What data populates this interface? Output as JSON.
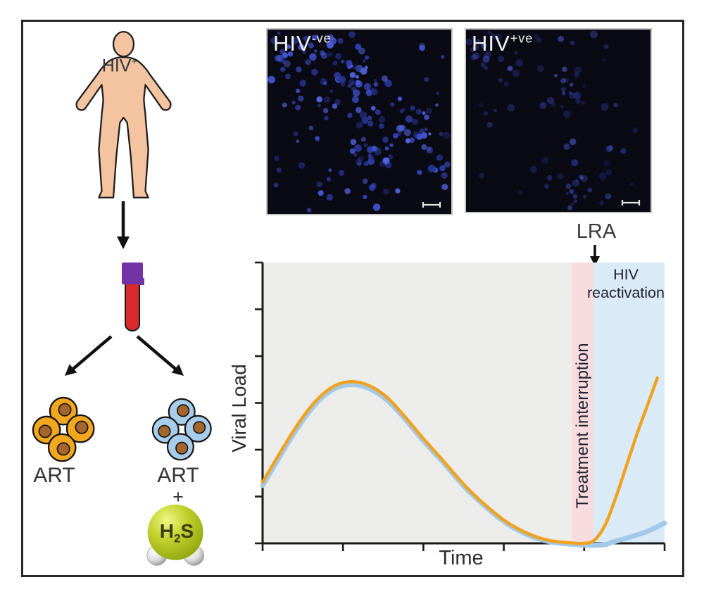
{
  "colors": {
    "skin": "#F4C4A0",
    "outline": "#1d1d1d",
    "tube_cap": "#7233A6",
    "tube_body": "#D8292B",
    "art_cell": "#F3A71D",
    "h2s_cell": "#A8CDEB",
    "nucleus": "#A4662B",
    "micrograph_bg": "#0a0a15",
    "text": "#2e2e2e"
  },
  "patient": {
    "label_base": "HIV",
    "label_sup": "+"
  },
  "micrographs": [
    {
      "label_base": "HIV",
      "label_sup": "-ve",
      "dot_count": 215,
      "dot_opacity": 1.0,
      "seed": 7
    },
    {
      "label_base": "HIV",
      "label_sup": "+ve",
      "dot_count": 115,
      "dot_opacity": 0.55,
      "seed": 13
    }
  ],
  "samples": {
    "art": {
      "label": "ART"
    },
    "art_h2s": {
      "label": "ART",
      "plus": "+",
      "molecule": {
        "h": "H",
        "sub": "2",
        "s": "S"
      }
    }
  },
  "chart_data": {
    "type": "line",
    "title": "",
    "xlabel": "Time",
    "ylabel": "Viral Load",
    "x_range": [
      0,
      1
    ],
    "y_range": [
      0,
      1
    ],
    "x_tick_count": 6,
    "y_tick_count": 7,
    "grid": false,
    "legend": "none",
    "regions": [
      {
        "name": "on-treatment",
        "from": 0,
        "to": 0.769,
        "color": "#ECECEA",
        "label": ""
      },
      {
        "name": "treatment-interruption",
        "from": 0.769,
        "to": 0.823,
        "color": "#F8DBDE",
        "label": "Treatment interruption"
      },
      {
        "name": "hiv-reactivation",
        "from": 0.823,
        "to": 1,
        "color": "#DAEAF6",
        "label": "HIV reactivation"
      }
    ],
    "annotations": [
      {
        "text": "LRA",
        "x": 0.823
      }
    ],
    "series": [
      {
        "name": "ART",
        "color": "#F0A21E",
        "width": 4.5,
        "points": [
          [
            0,
            0.218
          ],
          [
            0.047,
            0.331
          ],
          [
            0.091,
            0.431
          ],
          [
            0.135,
            0.511
          ],
          [
            0.179,
            0.561
          ],
          [
            0.222,
            0.576
          ],
          [
            0.266,
            0.561
          ],
          [
            0.31,
            0.519
          ],
          [
            0.354,
            0.451
          ],
          [
            0.398,
            0.376
          ],
          [
            0.45,
            0.293
          ],
          [
            0.503,
            0.206
          ],
          [
            0.555,
            0.135
          ],
          [
            0.608,
            0.075
          ],
          [
            0.66,
            0.035
          ],
          [
            0.713,
            0.01
          ],
          [
            0.765,
            0.002
          ],
          [
            0.8,
            0
          ],
          [
            0.826,
            0.012
          ],
          [
            0.853,
            0.068
          ],
          [
            0.879,
            0.165
          ],
          [
            0.905,
            0.276
          ],
          [
            0.931,
            0.388
          ],
          [
            0.958,
            0.494
          ],
          [
            0.982,
            0.589
          ]
        ]
      },
      {
        "name": "ART + H2S",
        "color": "#A3C9E9",
        "width": 7,
        "points": [
          [
            0,
            0.206
          ],
          [
            0.047,
            0.319
          ],
          [
            0.091,
            0.419
          ],
          [
            0.135,
            0.501
          ],
          [
            0.179,
            0.551
          ],
          [
            0.222,
            0.566
          ],
          [
            0.266,
            0.551
          ],
          [
            0.31,
            0.509
          ],
          [
            0.354,
            0.443
          ],
          [
            0.398,
            0.368
          ],
          [
            0.45,
            0.287
          ],
          [
            0.503,
            0.2
          ],
          [
            0.555,
            0.13
          ],
          [
            0.608,
            0.07
          ],
          [
            0.66,
            0.03
          ],
          [
            0.713,
            0.006
          ],
          [
            0.765,
            -0.003
          ],
          [
            0.809,
            -0.007
          ],
          [
            0.85,
            -0.005
          ],
          [
            0.87,
            0.004
          ],
          [
            0.914,
            0.022
          ],
          [
            0.958,
            0.043
          ],
          [
            1,
            0.072
          ]
        ]
      }
    ]
  }
}
